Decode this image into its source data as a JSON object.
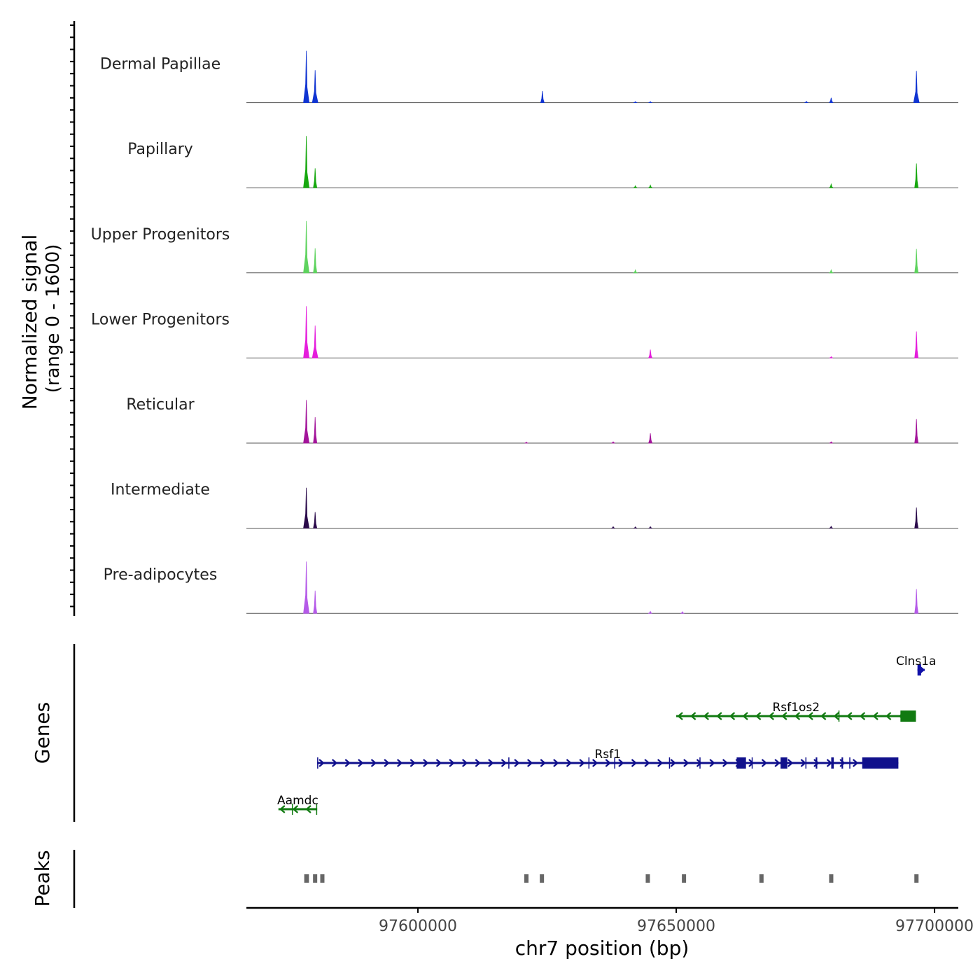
{
  "chart_data": {
    "type": "area",
    "title": "",
    "ylabel_line1": "Normalized signal",
    "ylabel_line2": "(range 0 - 1600)",
    "ylim": [
      0,
      1600
    ],
    "xlabel": "chr7 position (bp)",
    "xlim": [
      97566800,
      97704600
    ],
    "x_ticks": [
      97600000,
      97650000,
      97700000
    ],
    "x_tick_labels": [
      "97600000",
      "97650000",
      "97700000"
    ],
    "peak_positions": [
      97578500,
      97581500,
      97621000,
      97624000,
      97578400,
      97580100,
      97644500,
      97651500,
      97666500,
      97680000,
      97696500
    ],
    "series": [
      {
        "name": "Dermal Papillae",
        "color": "#1034d2",
        "peaks": [
          [
            97578400,
            1600
          ],
          [
            97580100,
            1000
          ],
          [
            97624100,
            360
          ],
          [
            97680000,
            150
          ],
          [
            97696500,
            980
          ],
          [
            97642100,
            30
          ],
          [
            97645000,
            30
          ],
          [
            97675200,
            40
          ]
        ]
      },
      {
        "name": "Papillary",
        "color": "#17a80f",
        "peaks": [
          [
            97578400,
            1600
          ],
          [
            97580100,
            600
          ],
          [
            97642100,
            60
          ],
          [
            97645000,
            80
          ],
          [
            97680000,
            110
          ],
          [
            97696500,
            750
          ]
        ]
      },
      {
        "name": "Upper Progenitors",
        "color": "#5ed35e",
        "peaks": [
          [
            97578400,
            1600
          ],
          [
            97580100,
            760
          ],
          [
            97642100,
            90
          ],
          [
            97680000,
            90
          ],
          [
            97696500,
            740
          ]
        ]
      },
      {
        "name": "Lower Progenitors",
        "color": "#e51ddc",
        "peaks": [
          [
            97578400,
            1600
          ],
          [
            97580100,
            1000
          ],
          [
            97645000,
            260
          ],
          [
            97680000,
            40
          ],
          [
            97696500,
            820
          ]
        ]
      },
      {
        "name": "Reticular",
        "color": "#a3149a",
        "peaks": [
          [
            97578400,
            1330
          ],
          [
            97580100,
            800
          ],
          [
            97645000,
            300
          ],
          [
            97637800,
            40
          ],
          [
            97621000,
            30
          ],
          [
            97680000,
            40
          ],
          [
            97696500,
            740
          ]
        ]
      },
      {
        "name": "Intermediate",
        "color": "#2a0a4a",
        "peaks": [
          [
            97578400,
            1250
          ],
          [
            97580100,
            500
          ],
          [
            97637800,
            50
          ],
          [
            97642100,
            40
          ],
          [
            97645000,
            50
          ],
          [
            97680000,
            60
          ],
          [
            97696500,
            640
          ]
        ]
      },
      {
        "name": "Pre-adipocytes",
        "color": "#b55ae8",
        "peaks": [
          [
            97578400,
            1600
          ],
          [
            97580100,
            700
          ],
          [
            97645000,
            60
          ],
          [
            97651200,
            50
          ],
          [
            97696500,
            750
          ]
        ]
      }
    ],
    "gene_panel_label": "Genes",
    "genes": [
      {
        "name": "Clns1a",
        "strand": "+",
        "start": 97696700,
        "end": 97698100,
        "color": "#1010a8",
        "row": 0,
        "exons": [
          [
            97696700,
            97697400
          ]
        ]
      },
      {
        "name": "Rsf1os2",
        "strand": "-",
        "start": 97650000,
        "end": 97696400,
        "color": "#117a11",
        "row": 1,
        "exons": [
          [
            97693400,
            97696400
          ],
          [
            97681400,
            97681500
          ]
        ]
      },
      {
        "name": "Rsf1",
        "strand": "+",
        "start": 97580500,
        "end": 97693000,
        "color": "#10108c",
        "row": 2,
        "exons": [
          [
            97580500,
            97580600
          ],
          [
            97617500,
            97617600
          ],
          [
            97633000,
            97633200
          ],
          [
            97638000,
            97638200
          ],
          [
            97648600,
            97648800
          ],
          [
            97654500,
            97654600
          ],
          [
            97661700,
            97663500
          ],
          [
            97664600,
            97664800
          ],
          [
            97670200,
            97671500
          ],
          [
            97675000,
            97675200
          ],
          [
            97677000,
            97677300
          ],
          [
            97680000,
            97680500
          ],
          [
            97682000,
            97682300
          ],
          [
            97683500,
            97683700
          ],
          [
            97686000,
            97693000
          ]
        ]
      },
      {
        "name": "Aamdc",
        "strand": "-",
        "start": 97573000,
        "end": 97580500,
        "color": "#117a11",
        "row": 3,
        "exons": [
          [
            97580300,
            97580500
          ],
          [
            97575600,
            97575800
          ]
        ]
      }
    ],
    "peaks_panel_label": "Peaks"
  }
}
